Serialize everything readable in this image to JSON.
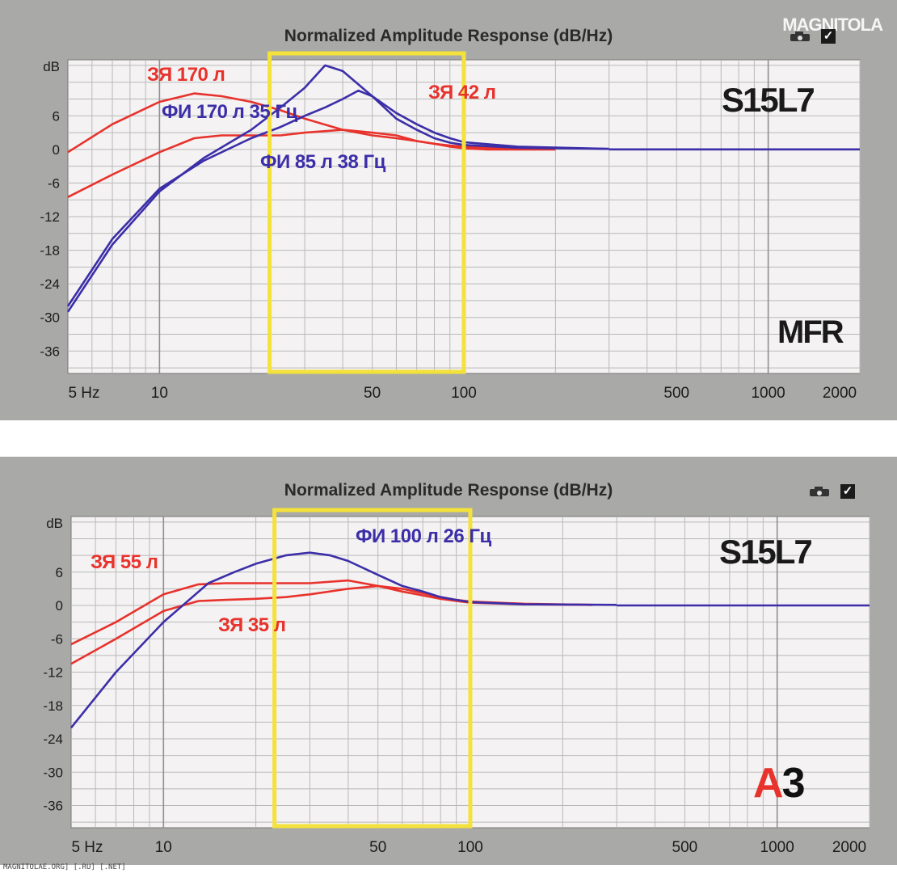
{
  "watermark": "MAGNITOLA",
  "footer": "MAGNITOLAE.ORG] [.RU] [.NET]",
  "colors": {
    "red": "#e8322c",
    "blue": "#3b2ea8",
    "highlight": "#f4e23a",
    "grid": "#b9b9b9",
    "plot_bg": "#f4f2f2",
    "panel_bg": "#a9aaa8"
  },
  "icons": [
    "camera-icon",
    "checkbox-icon"
  ],
  "chart_data": [
    {
      "type": "line",
      "title": "Normalized Amplitude Response (dB/Hz)",
      "y_unit_label": "dB",
      "x_scale": "log",
      "xlim": [
        5,
        2000
      ],
      "ylim": [
        -40,
        16
      ],
      "x_tick_labels": [
        "5 Hz",
        "10",
        "50",
        "100",
        "500",
        "1000",
        "2000"
      ],
      "y_tick_labels": [
        "6",
        "0",
        "-6",
        "-12",
        "-18",
        "-24",
        "-30",
        "-36"
      ],
      "highlight_x_range": [
        23,
        100
      ],
      "model_label": "S15L7",
      "corner_label": "MFR",
      "series": [
        {
          "name": "ЗЯ 170 л",
          "color": "red",
          "x": [
            5,
            7,
            10,
            13,
            16,
            20,
            25,
            30,
            40,
            50,
            60,
            70,
            80,
            90,
            100,
            120,
            150,
            200
          ],
          "y": [
            -0.5,
            4.5,
            8.5,
            10,
            9.5,
            8.5,
            7,
            5.5,
            3.5,
            2.5,
            2,
            1.5,
            1,
            0.7,
            0.5,
            0.3,
            0.2,
            0.1
          ]
        },
        {
          "name": "ЗЯ 42 л",
          "color": "red",
          "x": [
            5,
            7,
            10,
            13,
            16,
            20,
            25,
            30,
            40,
            50,
            60,
            70,
            80,
            90,
            100,
            120,
            150,
            200
          ],
          "y": [
            -8.5,
            -4.5,
            -0.5,
            2,
            2.5,
            2.5,
            2.5,
            3,
            3.5,
            3,
            2.5,
            1.5,
            1,
            0.5,
            0.2,
            0,
            0,
            0
          ]
        },
        {
          "name": "ФИ 170 л 35 Гц",
          "color": "blue",
          "x": [
            5,
            7,
            10,
            14,
            20,
            25,
            30,
            35,
            40,
            50,
            60,
            70,
            80,
            90,
            100,
            150,
            300
          ],
          "y": [
            -29,
            -17,
            -7.5,
            -1.5,
            3.5,
            7.5,
            11,
            15,
            14,
            9.5,
            5.5,
            3.5,
            2,
            1.2,
            0.8,
            0.3,
            0.1
          ]
        },
        {
          "name": "ФИ 85 л 38 Гц",
          "color": "blue",
          "x": [
            5,
            7,
            10,
            14,
            20,
            25,
            30,
            35,
            40,
            45,
            50,
            60,
            70,
            80,
            90,
            100,
            150,
            300
          ],
          "y": [
            -28,
            -16,
            -7,
            -2,
            2,
            4,
            6,
            7.5,
            9,
            10.5,
            9.5,
            6.5,
            4.5,
            3,
            2,
            1.3,
            0.5,
            0.1
          ]
        }
      ]
    },
    {
      "type": "line",
      "title": "Normalized Amplitude Response (dB/Hz)",
      "y_unit_label": "dB",
      "x_scale": "log",
      "xlim": [
        5,
        2000
      ],
      "ylim": [
        -40,
        16
      ],
      "x_tick_labels": [
        "5 Hz",
        "10",
        "50",
        "100",
        "500",
        "1000",
        "2000"
      ],
      "y_tick_labels": [
        "6",
        "0",
        "-6",
        "-12",
        "-18",
        "-24",
        "-30",
        "-36"
      ],
      "highlight_x_range": [
        23,
        100
      ],
      "model_label": "S15L7",
      "corner_label": "A3",
      "series": [
        {
          "name": "ЗЯ 55 л",
          "color": "red",
          "x": [
            5,
            7,
            10,
            13,
            16,
            20,
            25,
            30,
            40,
            50,
            60,
            70,
            80,
            90,
            100,
            150,
            250
          ],
          "y": [
            -7,
            -3,
            2,
            3.8,
            4,
            4,
            4,
            4,
            4.5,
            3.5,
            2.5,
            1.8,
            1.2,
            0.8,
            0.5,
            0.2,
            0.1
          ]
        },
        {
          "name": "ЗЯ 35 л",
          "color": "red",
          "x": [
            5,
            7,
            10,
            13,
            16,
            20,
            25,
            30,
            40,
            50,
            60,
            70,
            80,
            90,
            100,
            150,
            250
          ],
          "y": [
            -10.5,
            -6,
            -1,
            0.8,
            1,
            1.2,
            1.5,
            2,
            3,
            3.5,
            3,
            2.2,
            1.5,
            1,
            0.7,
            0.3,
            0.1
          ]
        },
        {
          "name": "ФИ 100 л 26 Гц",
          "color": "blue",
          "x": [
            5,
            7,
            10,
            14,
            17,
            20,
            25,
            30,
            35,
            40,
            50,
            60,
            70,
            80,
            90,
            100,
            150,
            300
          ],
          "y": [
            -22,
            -12,
            -3,
            4,
            6,
            7.5,
            9,
            9.5,
            9,
            8,
            5.5,
            3.5,
            2.5,
            1.5,
            1,
            0.6,
            0.2,
            0.1
          ]
        }
      ]
    }
  ]
}
